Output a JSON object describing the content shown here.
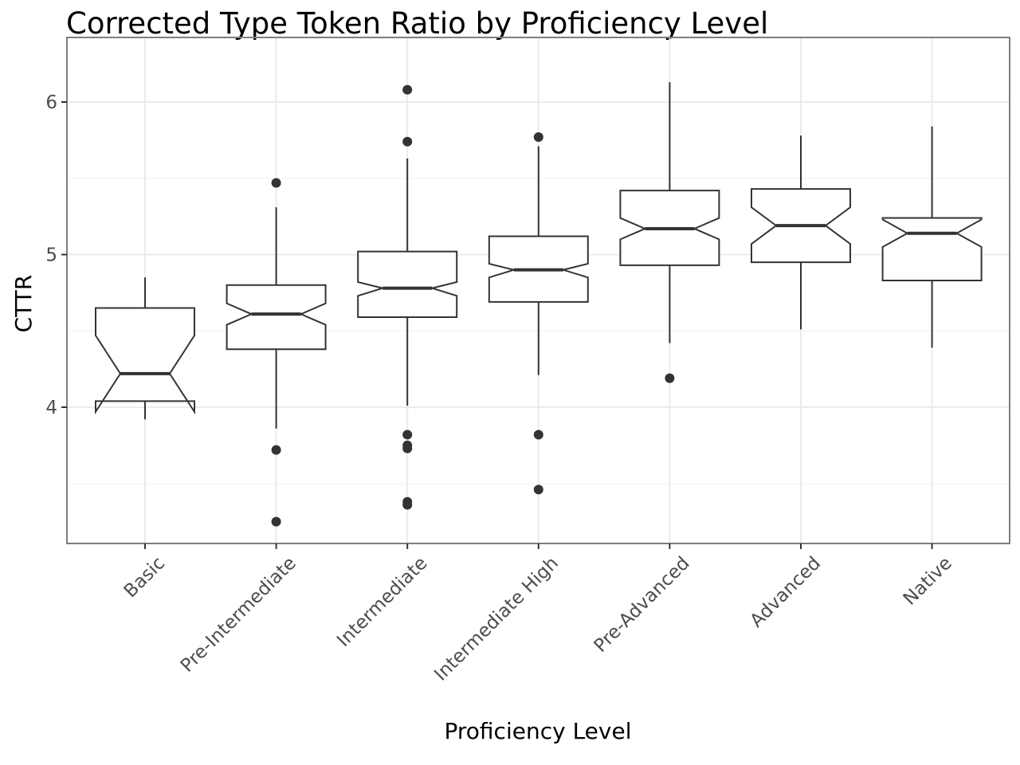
{
  "chart_data": {
    "type": "boxplot",
    "title": "Corrected Type Token Ratio by Proficiency Level",
    "xlabel": "Proficiency Level",
    "ylabel": "CTTR",
    "ylim": [
      3.1,
      6.25
    ],
    "yticks": [
      4,
      5,
      6
    ],
    "grid": true,
    "notched": true,
    "categories": [
      "Basic",
      "Pre-Intermediate",
      "Intermediate",
      "Intermediate High",
      "Pre-Advanced",
      "Advanced",
      "Native"
    ],
    "boxes": [
      {
        "category": "Basic",
        "whisker_low": 3.92,
        "q1": 4.04,
        "median": 4.22,
        "q3": 4.65,
        "whisker_high": 4.85,
        "notch_low": 3.97,
        "notch_high": 4.47,
        "outliers": []
      },
      {
        "category": "Pre-Intermediate",
        "whisker_low": 3.86,
        "q1": 4.38,
        "median": 4.61,
        "q3": 4.8,
        "whisker_high": 5.31,
        "notch_low": 4.54,
        "notch_high": 4.68,
        "outliers": [
          5.47,
          3.72,
          3.25
        ]
      },
      {
        "category": "Intermediate",
        "whisker_low": 4.01,
        "q1": 4.59,
        "median": 4.78,
        "q3": 5.02,
        "whisker_high": 5.63,
        "notch_low": 4.73,
        "notch_high": 4.82,
        "outliers": [
          6.08,
          5.74,
          3.82,
          3.75,
          3.73,
          3.38,
          3.36
        ]
      },
      {
        "category": "Intermediate High",
        "whisker_low": 4.21,
        "q1": 4.69,
        "median": 4.9,
        "q3": 5.12,
        "whisker_high": 5.71,
        "notch_low": 4.85,
        "notch_high": 4.94,
        "outliers": [
          5.77,
          3.82,
          3.46
        ]
      },
      {
        "category": "Pre-Advanced",
        "whisker_low": 4.42,
        "q1": 4.93,
        "median": 5.17,
        "q3": 5.42,
        "whisker_high": 6.13,
        "notch_low": 5.1,
        "notch_high": 5.24,
        "outliers": [
          4.19
        ]
      },
      {
        "category": "Advanced",
        "whisker_low": 4.51,
        "q1": 4.95,
        "median": 5.19,
        "q3": 5.43,
        "whisker_high": 5.78,
        "notch_low": 5.07,
        "notch_high": 5.31,
        "outliers": []
      },
      {
        "category": "Native",
        "whisker_low": 4.39,
        "q1": 4.83,
        "median": 5.14,
        "q3": 5.24,
        "whisker_high": 5.84,
        "notch_low": 5.05,
        "notch_high": 5.23,
        "outliers": []
      }
    ],
    "colors": {
      "box_stroke": "#333333",
      "box_fill": "#ffffff",
      "outlier": "#333333",
      "panel_border": "#7f7f7f",
      "grid_major": "#ebebeb",
      "grid_minor": "#f5f5f5",
      "tick_text": "#4d4d4d"
    }
  }
}
